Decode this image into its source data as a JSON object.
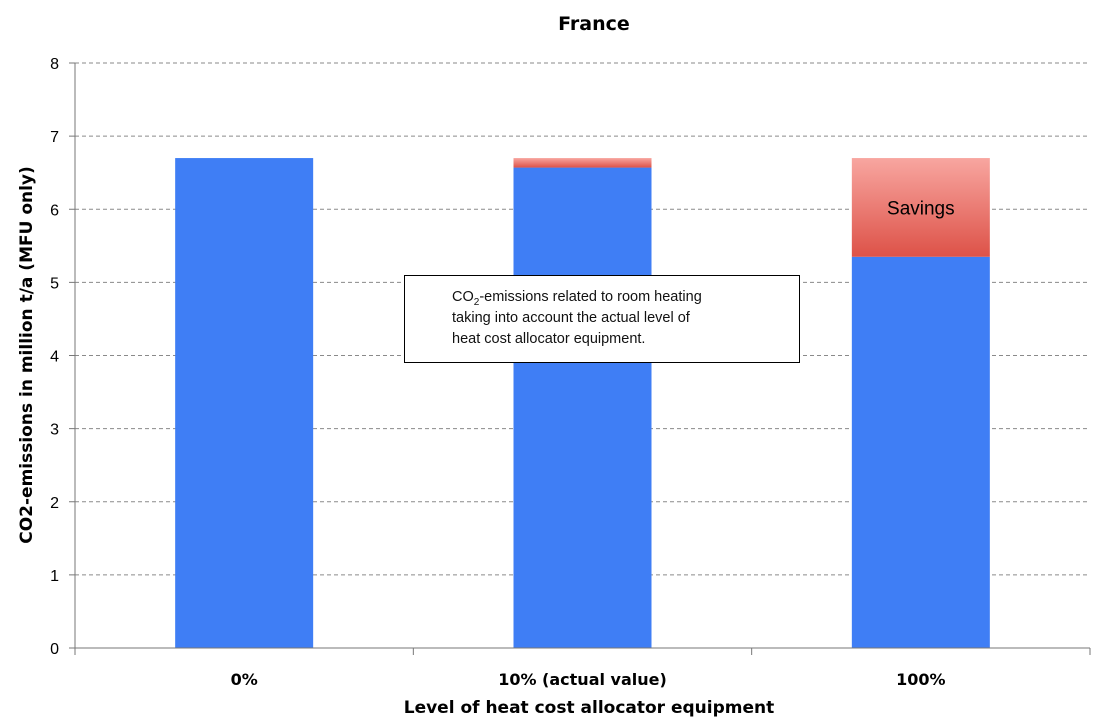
{
  "chart_data": {
    "type": "bar",
    "stacked": true,
    "title": "France",
    "xlabel": "Level of heat cost allocator equipment",
    "ylabel": "CO2-emissions in million t/a (MFU only)",
    "categories": [
      "0%",
      "10% (actual value)",
      "100%"
    ],
    "series": [
      {
        "key": "emissions",
        "values": [
          6.7,
          6.57,
          5.35
        ],
        "color": "#3f7ef5"
      },
      {
        "key": "savings",
        "values": [
          0,
          0.13,
          1.35
        ],
        "color_top": "#f8a6a0",
        "color_bottom": "#dd5248"
      }
    ],
    "ylim": [
      0,
      8
    ],
    "yticks": [
      "0",
      "1",
      "2",
      "3",
      "4",
      "5",
      "6",
      "7",
      "8"
    ],
    "grid": true,
    "grid_style": "dashed",
    "bar_label": "Savings",
    "annotation": {
      "prefix": "CO",
      "subscript": "2",
      "rest_line1": "-emissions related to room heating",
      "line2": "taking into account the actual level of",
      "line3": "heat cost allocator equipment."
    }
  }
}
